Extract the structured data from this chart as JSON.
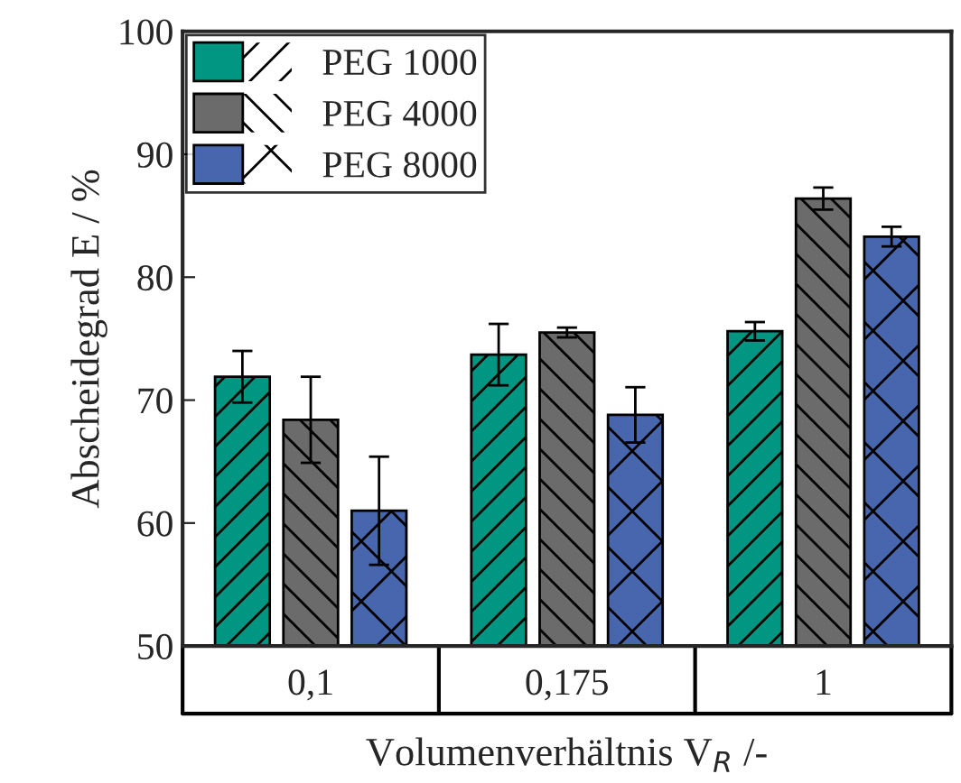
{
  "chart_data": {
    "type": "bar",
    "ylabel": "Abscheidegrad E / %",
    "xlabel": "Volumenverhältnis V$_{R}$ /-",
    "categories": [
      "0,1",
      "0,175",
      "1"
    ],
    "series": [
      {
        "name": "PEG 1000",
        "color": "#009681",
        "values": [
          71.9,
          73.7,
          75.6
        ],
        "errors": [
          2.1,
          2.5,
          0.75
        ]
      },
      {
        "name": "PEG 4000",
        "color": "#6b6b6b",
        "values": [
          68.4,
          75.5,
          86.4
        ],
        "errors": [
          3.5,
          0.4,
          0.9
        ]
      },
      {
        "name": "PEG 8000",
        "color": "#4766ad",
        "values": [
          61.0,
          68.8,
          83.3
        ],
        "errors": [
          4.4,
          2.25,
          0.8
        ]
      }
    ],
    "ylim": [
      50,
      100
    ],
    "yticks": [
      50,
      60,
      70,
      80,
      90,
      100
    ],
    "grid": false,
    "legend": "top left"
  }
}
